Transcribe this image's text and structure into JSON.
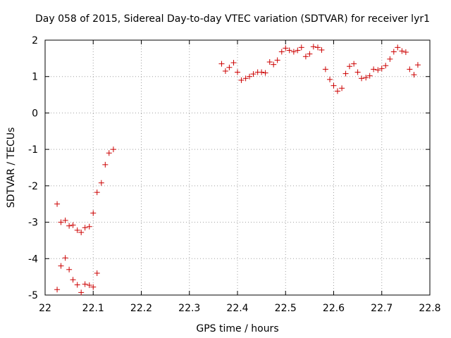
{
  "chart_data": {
    "type": "scatter",
    "title": "Day 058 of 2015, Sidereal Day-to-day VTEC variation (SDTVAR) for receiver lyr1",
    "xlabel": "GPS time / hours",
    "ylabel": "SDTVAR / TECUs",
    "xlim": [
      22.0,
      22.8
    ],
    "ylim": [
      -5,
      2
    ],
    "xticks": [
      "22",
      "22.1",
      "22.2",
      "22.3",
      "22.4",
      "22.5",
      "22.6",
      "22.7",
      "22.8"
    ],
    "yticks": [
      "-5",
      "-4",
      "-3",
      "-2",
      "-1",
      "0",
      "1",
      "2"
    ],
    "grid": true,
    "marker": "+",
    "color": "#cc0000",
    "series": [
      {
        "name": "lyr1",
        "x": [
          22.025,
          22.025,
          22.033,
          22.033,
          22.042,
          22.042,
          22.05,
          22.05,
          22.058,
          22.058,
          22.067,
          22.067,
          22.075,
          22.075,
          22.083,
          22.083,
          22.092,
          22.092,
          22.1,
          22.1,
          22.108,
          22.108,
          22.117,
          22.125,
          22.133,
          22.142,
          22.367,
          22.375,
          22.383,
          22.392,
          22.4,
          22.408,
          22.417,
          22.425,
          22.433,
          22.442,
          22.45,
          22.458,
          22.467,
          22.475,
          22.483,
          22.492,
          22.5,
          22.508,
          22.517,
          22.525,
          22.533,
          22.542,
          22.55,
          22.558,
          22.567,
          22.575,
          22.583,
          22.592,
          22.6,
          22.608,
          22.617,
          22.625,
          22.633,
          22.642,
          22.65,
          22.658,
          22.667,
          22.675,
          22.683,
          22.692,
          22.7,
          22.708,
          22.717,
          22.725,
          22.733,
          22.742,
          22.75,
          22.758,
          22.767,
          22.775
        ],
        "y": [
          -2.5,
          -4.85,
          -3.0,
          -4.2,
          -2.95,
          -3.98,
          -3.1,
          -4.3,
          -3.08,
          -4.58,
          -3.22,
          -4.72,
          -3.28,
          -4.93,
          -3.15,
          -4.7,
          -3.12,
          -4.73,
          -2.75,
          -4.78,
          -2.18,
          -4.4,
          -1.92,
          -1.42,
          -1.1,
          -1.0,
          1.35,
          1.15,
          1.25,
          1.38,
          1.12,
          0.9,
          0.95,
          1.0,
          1.07,
          1.12,
          1.12,
          1.1,
          1.4,
          1.33,
          1.45,
          1.68,
          1.78,
          1.72,
          1.68,
          1.72,
          1.8,
          1.55,
          1.62,
          1.82,
          1.8,
          1.73,
          1.2,
          0.92,
          0.75,
          0.6,
          0.68,
          1.08,
          1.28,
          1.35,
          1.12,
          0.95,
          0.97,
          1.02,
          1.2,
          1.18,
          1.22,
          1.3,
          1.48,
          1.68,
          1.8,
          1.7,
          1.67,
          1.2,
          1.05,
          1.32
        ]
      }
    ]
  }
}
